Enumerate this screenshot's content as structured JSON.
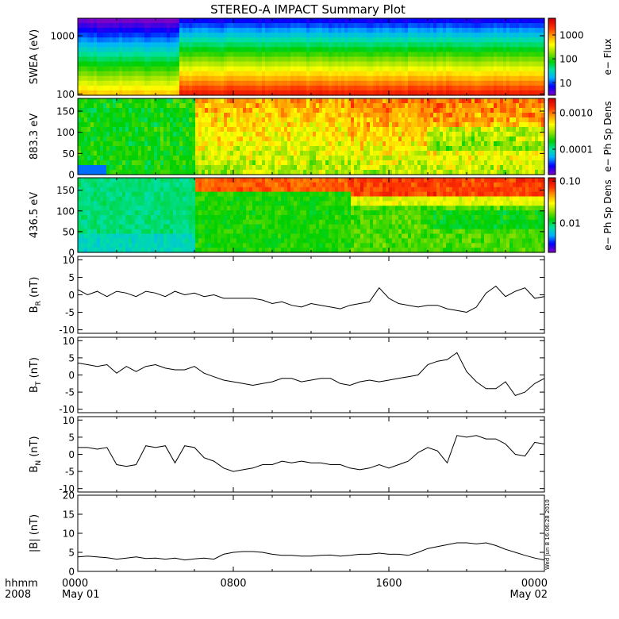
{
  "figure": {
    "title": "STEREO-A IMPACT Summary Plot",
    "stamp": "Wed Jun  8 16:06:28 2010"
  },
  "colors": {
    "background": "#ffffff",
    "axis": "#000000",
    "line": "#000000",
    "colormap": [
      "#7a00c8",
      "#0000ff",
      "#00b0ff",
      "#00e0a0",
      "#00d000",
      "#90e000",
      "#ffff00",
      "#ffa000",
      "#ff3000",
      "#d00000"
    ]
  },
  "chart_data": [
    {
      "id": "swea",
      "type": "heatmap",
      "ylabel": "SWEA (eV)",
      "ylog": true,
      "ylim": [
        95,
        2000
      ],
      "yticks": [
        "1000",
        "100"
      ],
      "yticks_values": [
        1000,
        100
      ],
      "colorbar": {
        "label": "e− Flux",
        "log": true,
        "ticks": [
          "1000",
          "100",
          "10"
        ],
        "tick_values": [
          1000,
          100,
          10
        ],
        "range": [
          3,
          5000
        ]
      },
      "description_values": "energy flux; low energies red, high energies blue; jump in level near 05:30"
    },
    {
      "id": "pad883",
      "type": "heatmap",
      "ylabel": "883.3 eV",
      "ylim": [
        0,
        180
      ],
      "yticks": [
        "150",
        "100",
        "50",
        "0"
      ],
      "yticks_values": [
        150,
        100,
        50,
        0
      ],
      "colorbar": {
        "label": "e− Ph Sp Dens",
        "log": true,
        "ticks": [
          "0.0010",
          "0.0001"
        ],
        "tick_values": [
          0.001,
          0.0001
        ],
        "range": [
          2e-05,
          0.0025
        ]
      }
    },
    {
      "id": "pad436",
      "type": "heatmap",
      "ylabel": "436.5 eV",
      "ylim": [
        0,
        180
      ],
      "yticks": [
        "150",
        "100",
        "50",
        "0"
      ],
      "yticks_values": [
        150,
        100,
        50,
        0
      ],
      "colorbar": {
        "label": "e− Ph Sp Dens",
        "log": true,
        "ticks": [
          "0.10",
          "0.01"
        ],
        "tick_values": [
          0.1,
          0.01
        ],
        "range": [
          0.002,
          0.12
        ]
      }
    },
    {
      "id": "br",
      "type": "line",
      "ylabel": "B",
      "ysub": "R",
      "yunit": " (nT)",
      "ylim": [
        -11,
        11
      ],
      "yticks": [
        "10",
        "5",
        "0",
        "-5",
        "-10"
      ],
      "yticks_values": [
        10,
        5,
        0,
        -5,
        -10
      ],
      "x": [
        0,
        0.5,
        1,
        1.5,
        2,
        2.5,
        3,
        3.5,
        4,
        4.5,
        5,
        5.5,
        6,
        6.5,
        7,
        7.5,
        8,
        8.5,
        9,
        9.5,
        10,
        10.5,
        11,
        11.5,
        12,
        12.5,
        13,
        13.5,
        14,
        14.5,
        15,
        15.5,
        16,
        16.5,
        17,
        17.5,
        18,
        18.5,
        19,
        19.5,
        20,
        20.5,
        21,
        21.5,
        22,
        22.5,
        23,
        23.5,
        24
      ],
      "y": [
        1.5,
        0,
        1,
        -0.5,
        1,
        0.5,
        -0.5,
        1,
        0.5,
        -0.5,
        1,
        0,
        0.5,
        -0.5,
        0,
        -1,
        -1,
        -1,
        -1,
        -1.5,
        -2.5,
        -2,
        -3,
        -3.5,
        -2.5,
        -3,
        -3.5,
        -4,
        -3,
        -2.5,
        -2,
        2,
        -1,
        -2.5,
        -3,
        -3.5,
        -3,
        -3,
        -4,
        -4.5,
        -5,
        -3.5,
        0.5,
        2.5,
        -0.5,
        1,
        2,
        -1,
        -0.5
      ]
    },
    {
      "id": "bt",
      "type": "line",
      "ylabel": "B",
      "ysub": "T",
      "yunit": " (nT)",
      "ylim": [
        -11,
        11
      ],
      "yticks": [
        "10",
        "5",
        "0",
        "-5",
        "-10"
      ],
      "yticks_values": [
        10,
        5,
        0,
        -5,
        -10
      ],
      "x": [
        0,
        0.5,
        1,
        1.5,
        2,
        2.5,
        3,
        3.5,
        4,
        4.5,
        5,
        5.5,
        6,
        6.5,
        7,
        7.5,
        8,
        8.5,
        9,
        9.5,
        10,
        10.5,
        11,
        11.5,
        12,
        12.5,
        13,
        13.5,
        14,
        14.5,
        15,
        15.5,
        16,
        16.5,
        17,
        17.5,
        18,
        18.5,
        19,
        19.5,
        20,
        20.5,
        21,
        21.5,
        22,
        22.5,
        23,
        23.5,
        24
      ],
      "y": [
        3.5,
        3,
        2.5,
        3,
        0.5,
        2.5,
        1,
        2.5,
        3,
        2,
        1.5,
        1.5,
        2.5,
        0.5,
        -0.5,
        -1.5,
        -2,
        -2.5,
        -3,
        -2.5,
        -2,
        -1,
        -1,
        -2,
        -1.5,
        -1,
        -1,
        -2.5,
        -3,
        -2,
        -1.5,
        -2,
        -1.5,
        -1,
        -0.5,
        0,
        3,
        4,
        4.5,
        6.5,
        1,
        -2,
        -4,
        -4,
        -2,
        -6,
        -5,
        -2.5,
        -1
      ]
    },
    {
      "id": "bn",
      "type": "line",
      "ylabel": "B",
      "ysub": "N",
      "yunit": " (nT)",
      "ylim": [
        -11,
        11
      ],
      "yticks": [
        "10",
        "5",
        "0",
        "-5",
        "-10"
      ],
      "yticks_values": [
        10,
        5,
        0,
        -5,
        -10
      ],
      "x": [
        0,
        0.5,
        1,
        1.5,
        2,
        2.5,
        3,
        3.5,
        4,
        4.5,
        5,
        5.5,
        6,
        6.5,
        7,
        7.5,
        8,
        8.5,
        9,
        9.5,
        10,
        10.5,
        11,
        11.5,
        12,
        12.5,
        13,
        13.5,
        14,
        14.5,
        15,
        15.5,
        16,
        16.5,
        17,
        17.5,
        18,
        18.5,
        19,
        19.5,
        20,
        20.5,
        21,
        21.5,
        22,
        22.5,
        23,
        23.5,
        24
      ],
      "y": [
        2,
        2,
        1.5,
        2,
        -3,
        -3.5,
        -3,
        2.5,
        2,
        2.5,
        -2.5,
        2.5,
        2,
        -1,
        -2,
        -4,
        -5,
        -4.5,
        -4,
        -3,
        -3,
        -2,
        -2.5,
        -2,
        -2.5,
        -2.5,
        -3,
        -3,
        -4,
        -4.5,
        -4,
        -3,
        -4,
        -3,
        -2,
        0.5,
        2,
        1,
        -2.5,
        5.5,
        5,
        5.5,
        4.5,
        4.5,
        3,
        0,
        -0.5,
        3.5,
        3
      ]
    },
    {
      "id": "bmag",
      "type": "line",
      "ylabel": "|B|",
      "ysub": "",
      "yunit": " (nT)",
      "ylim": [
        0,
        20
      ],
      "yticks": [
        "20",
        "15",
        "10",
        "5",
        "0"
      ],
      "yticks_values": [
        20,
        15,
        10,
        5,
        0
      ],
      "x": [
        0,
        0.5,
        1,
        1.5,
        2,
        2.5,
        3,
        3.5,
        4,
        4.5,
        5,
        5.5,
        6,
        6.5,
        7,
        7.5,
        8,
        8.5,
        9,
        9.5,
        10,
        10.5,
        11,
        11.5,
        12,
        12.5,
        13,
        13.5,
        14,
        14.5,
        15,
        15.5,
        16,
        16.5,
        17,
        17.5,
        18,
        18.5,
        19,
        19.5,
        20,
        20.5,
        21,
        21.5,
        22,
        22.5,
        23,
        23.5,
        24
      ],
      "y": [
        3.8,
        4,
        3.8,
        3.6,
        3.2,
        3.5,
        3.8,
        3.4,
        3.5,
        3.2,
        3.5,
        3,
        3.3,
        3.5,
        3.2,
        4.5,
        5,
        5.2,
        5.2,
        5,
        4.5,
        4.2,
        4.2,
        4,
        4,
        4.2,
        4.3,
        4,
        4.2,
        4.5,
        4.5,
        4.8,
        4.5,
        4.5,
        4.2,
        5,
        6,
        6.5,
        7,
        7.5,
        7.5,
        7.2,
        7.5,
        6.8,
        5.8,
        5,
        4.2,
        3.5,
        3
      ]
    }
  ],
  "xaxis": {
    "label_line1": "hhmm",
    "label_line2": "2008",
    "ticks": [
      {
        "hour": 0,
        "time": "0000",
        "date": "May 01"
      },
      {
        "hour": 8,
        "time": "0800",
        "date": ""
      },
      {
        "hour": 16,
        "time": "1600",
        "date": ""
      },
      {
        "hour": 24,
        "time": "0000",
        "date": "May 02"
      }
    ],
    "xlim": [
      0,
      24
    ]
  }
}
